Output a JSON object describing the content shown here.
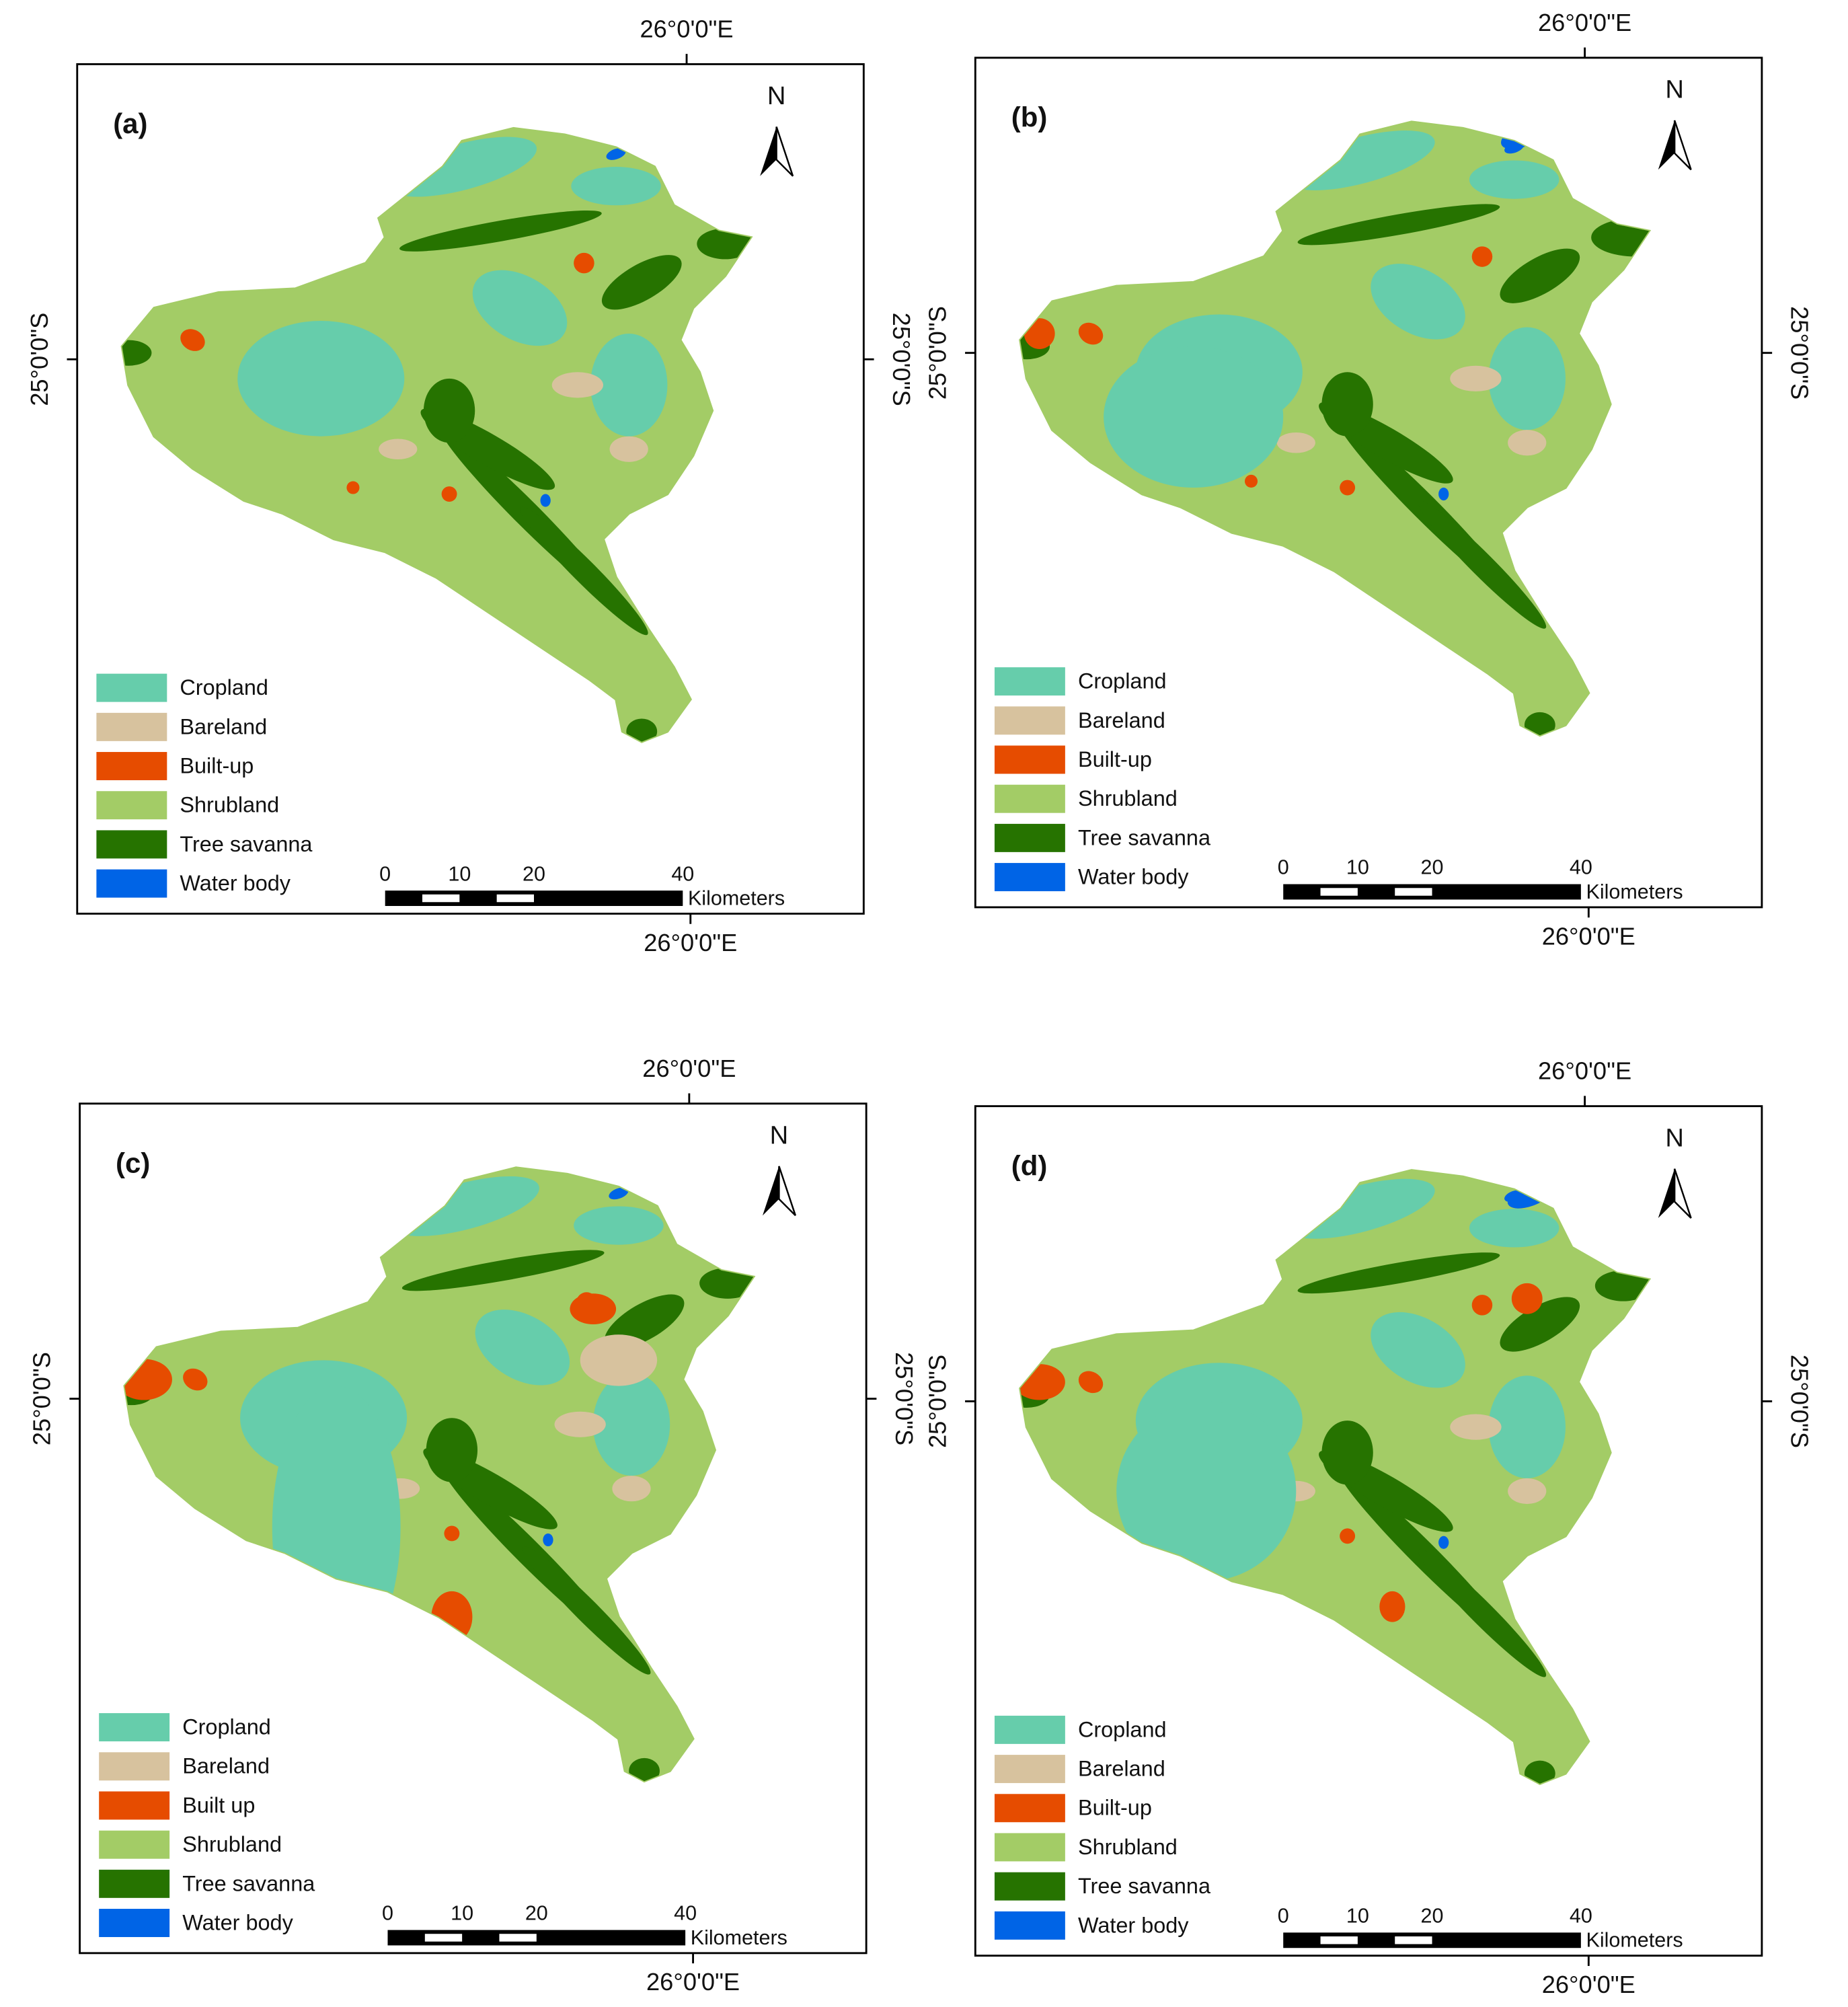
{
  "panels": [
    {
      "label": "(a)",
      "north": "N",
      "top_lon": "26°0'0\"E",
      "bottom_lon": "26°0'0\"E",
      "left_lat": "25°0'0\"S",
      "right_lat": "25°0'0\"S",
      "legend": [
        {
          "name": "Cropland",
          "color": "#66cdab"
        },
        {
          "name": "Bareland",
          "color": "#d7c29e"
        },
        {
          "name": "Built-up",
          "color": "#e64c00"
        },
        {
          "name": "Shrubland",
          "color": "#a3cc66"
        },
        {
          "name": "Tree savanna",
          "color": "#267300"
        },
        {
          "name": "Water body",
          "color": "#0064e6"
        }
      ],
      "scale": {
        "ticks": [
          0,
          10,
          20,
          40
        ],
        "unit": "Kilometers"
      }
    },
    {
      "label": "(b)",
      "north": "N",
      "top_lon": "26°0'0\"E",
      "bottom_lon": "26°0'0\"E",
      "left_lat": "25°0'0\"S",
      "right_lat": "25°0'0\"S",
      "legend": [
        {
          "name": "Cropland",
          "color": "#66cdab"
        },
        {
          "name": "Bareland",
          "color": "#d7c29e"
        },
        {
          "name": "Built-up",
          "color": "#e64c00"
        },
        {
          "name": "Shrubland",
          "color": "#a3cc66"
        },
        {
          "name": "Tree savanna",
          "color": "#267300"
        },
        {
          "name": "Water body",
          "color": "#0064e6"
        }
      ],
      "scale": {
        "ticks": [
          0,
          10,
          20,
          40
        ],
        "unit": "Kilometers"
      }
    },
    {
      "label": "(c)",
      "north": "N",
      "top_lon": "26°0'0\"E",
      "bottom_lon": "26°0'0\"E",
      "left_lat": "25°0'0\"S",
      "right_lat": "25°0'0\"S",
      "legend": [
        {
          "name": "Cropland",
          "color": "#66cdab"
        },
        {
          "name": "Bareland",
          "color": "#d7c29e"
        },
        {
          "name": "Built up",
          "color": "#e64c00"
        },
        {
          "name": "Shrubland",
          "color": "#a3cc66"
        },
        {
          "name": "Tree savanna",
          "color": "#267300"
        },
        {
          "name": "Water body",
          "color": "#0064e6"
        }
      ],
      "scale": {
        "ticks": [
          0,
          10,
          20,
          40
        ],
        "unit": "Kilometers"
      }
    },
    {
      "label": "(d)",
      "north": "N",
      "top_lon": "26°0'0\"E",
      "bottom_lon": "26°0'0\"E",
      "left_lat": "25°0'0\"S",
      "right_lat": "25°0'0\"S",
      "legend": [
        {
          "name": "Cropland",
          "color": "#66cdab"
        },
        {
          "name": "Bareland",
          "color": "#d7c29e"
        },
        {
          "name": "Built-up",
          "color": "#e64c00"
        },
        {
          "name": "Shrubland",
          "color": "#a3cc66"
        },
        {
          "name": "Tree savanna",
          "color": "#267300"
        },
        {
          "name": "Water body",
          "color": "#0064e6"
        }
      ],
      "scale": {
        "ticks": [
          0,
          10,
          20,
          40
        ],
        "unit": "Kilometers"
      }
    }
  ]
}
